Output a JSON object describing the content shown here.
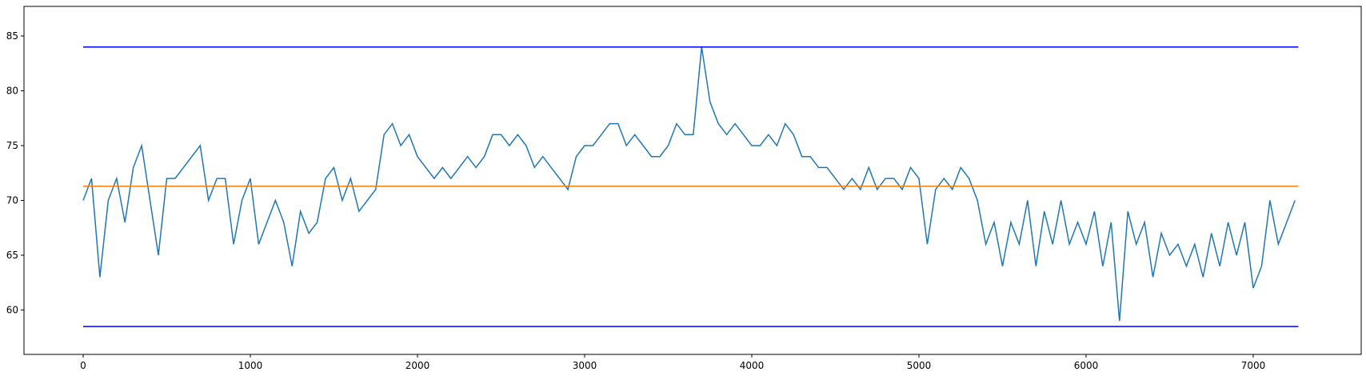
{
  "chart_data": {
    "type": "line",
    "x": [
      0,
      50,
      100,
      150,
      200,
      250,
      300,
      350,
      400,
      450,
      500,
      550,
      600,
      650,
      700,
      750,
      800,
      850,
      900,
      950,
      1000,
      1050,
      1100,
      1150,
      1200,
      1250,
      1300,
      1350,
      1400,
      1450,
      1500,
      1550,
      1600,
      1650,
      1700,
      1750,
      1800,
      1850,
      1900,
      1950,
      2000,
      2050,
      2100,
      2150,
      2200,
      2250,
      2300,
      2350,
      2400,
      2450,
      2500,
      2550,
      2600,
      2650,
      2700,
      2750,
      2800,
      2850,
      2900,
      2950,
      3000,
      3050,
      3100,
      3150,
      3200,
      3250,
      3300,
      3350,
      3400,
      3450,
      3500,
      3550,
      3600,
      3650,
      3700,
      3750,
      3800,
      3850,
      3900,
      3950,
      4000,
      4050,
      4100,
      4150,
      4200,
      4250,
      4300,
      4350,
      4400,
      4450,
      4500,
      4550,
      4600,
      4650,
      4700,
      4750,
      4800,
      4850,
      4900,
      4950,
      5000,
      5050,
      5100,
      5150,
      5200,
      5250,
      5300,
      5350,
      5400,
      5450,
      5500,
      5550,
      5600,
      5650,
      5700,
      5750,
      5800,
      5850,
      5900,
      5950,
      6000,
      6050,
      6100,
      6150,
      6200,
      6250,
      6300,
      6350,
      6400,
      6450,
      6500,
      6550,
      6600,
      6650,
      6700,
      6750,
      6800,
      6850,
      6900,
      6950,
      7000,
      7050,
      7100,
      7150,
      7200,
      7250
    ],
    "series": [
      {
        "color": "#1f77b4",
        "values": [
          70,
          72,
          63,
          70,
          72,
          68,
          73,
          75,
          70,
          65,
          72,
          72,
          73,
          74,
          75,
          70,
          72,
          72,
          66,
          70,
          72,
          66,
          68,
          70,
          68,
          64,
          69,
          67,
          68,
          72,
          73,
          70,
          72,
          69,
          70,
          71,
          76,
          77,
          75,
          76,
          74,
          73,
          72,
          73,
          72,
          73,
          74,
          73,
          74,
          76,
          76,
          75,
          76,
          75,
          73,
          74,
          73,
          72,
          71,
          74,
          75,
          75,
          76,
          77,
          77,
          75,
          76,
          75,
          74,
          74,
          75,
          77,
          76,
          76,
          84,
          79,
          77,
          76,
          77,
          76,
          75,
          75,
          76,
          75,
          77,
          76,
          74,
          74,
          73,
          73,
          72,
          71,
          72,
          71,
          73,
          71,
          72,
          72,
          71,
          73,
          72,
          66,
          71,
          72,
          71,
          73,
          72,
          70,
          66,
          68,
          64,
          68,
          66,
          70,
          64,
          69,
          66,
          70,
          66,
          68,
          66,
          69,
          64,
          68,
          59,
          69,
          66,
          68,
          63,
          67,
          65,
          66,
          64,
          66,
          63,
          67,
          64,
          68,
          65,
          68,
          62,
          64,
          70,
          66,
          68,
          70
        ]
      },
      {
        "color": "#ff7f0e",
        "x": [
          0,
          7270
        ],
        "values": [
          71.3,
          71.3
        ]
      },
      {
        "color": "#0000ff",
        "x": [
          0,
          7270
        ],
        "values": [
          84,
          84
        ]
      },
      {
        "color": "#0000ff",
        "x": [
          0,
          7270
        ],
        "values": [
          58.5,
          58.5
        ]
      }
    ],
    "xlim": [
      -354,
      7646
    ],
    "ylim": [
      55.95,
      87.7
    ],
    "xticks": [
      0,
      1000,
      2000,
      3000,
      4000,
      5000,
      6000,
      7000
    ],
    "yticks": [
      60,
      65,
      70,
      75,
      80,
      85
    ]
  }
}
